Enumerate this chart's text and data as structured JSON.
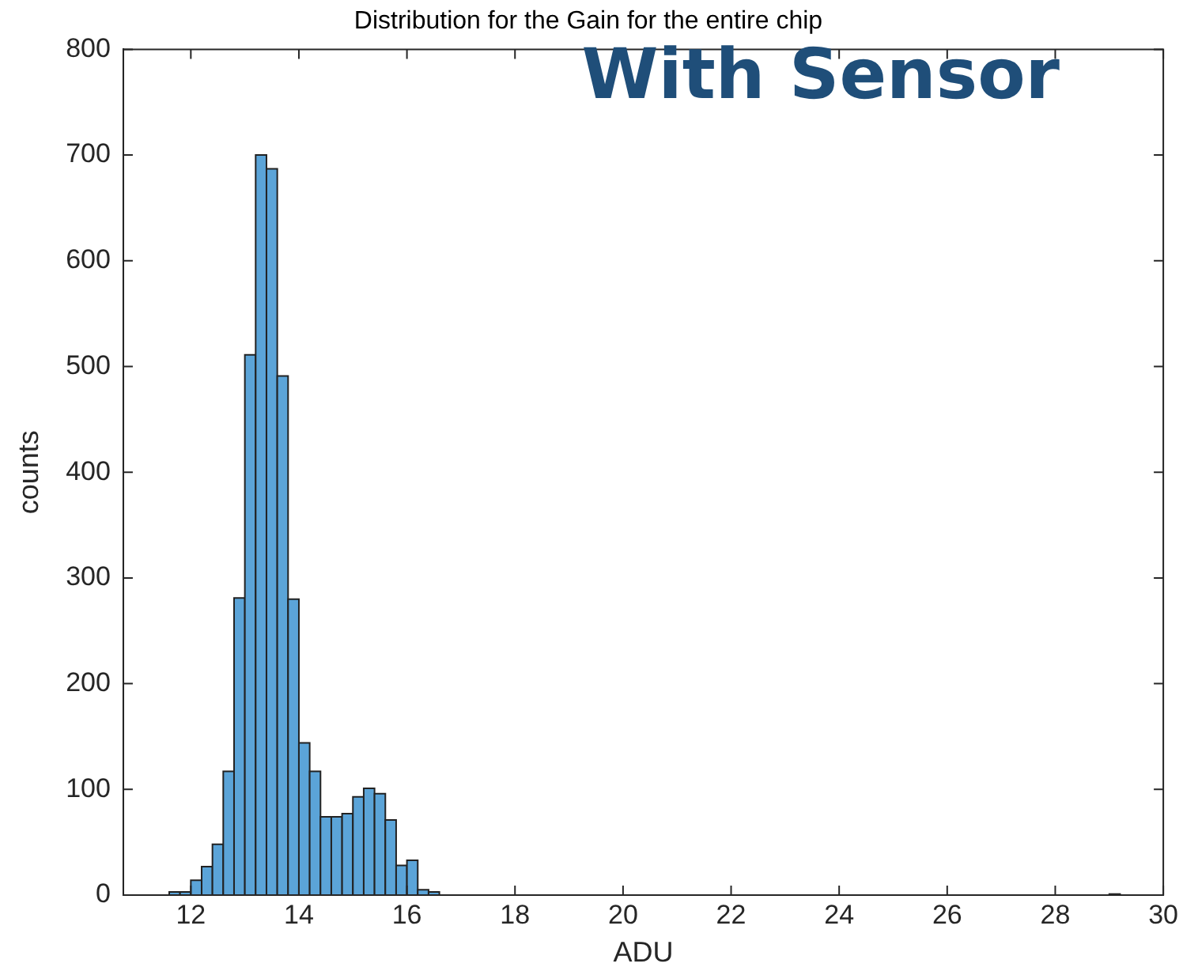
{
  "chart_data": {
    "type": "histogram",
    "title": "Distribution for the Gain for the entire chip",
    "xlabel": "ADU",
    "ylabel": "counts",
    "annotations": [
      "With Sensor"
    ],
    "bins": [
      11.6,
      11.8,
      12.0,
      12.2,
      12.4,
      12.6,
      12.8,
      13.0,
      13.2,
      13.4,
      13.6,
      13.8,
      14.0,
      14.2,
      14.4,
      14.6,
      14.8,
      15.0,
      15.2,
      15.4,
      15.6,
      15.8,
      16.0,
      16.2,
      16.4,
      16.6,
      29.0,
      29.2
    ],
    "values": [
      3,
      3,
      14,
      27,
      48,
      117,
      281,
      511,
      700,
      687,
      491,
      280,
      144,
      117,
      74,
      74,
      77,
      93,
      101,
      96,
      71,
      28,
      33,
      5,
      3,
      0,
      1
    ],
    "color": "#5ba4d8",
    "xlim": [
      10.75,
      30
    ],
    "xticks": [
      12,
      14,
      16,
      18,
      20,
      22,
      24,
      26,
      28,
      30
    ],
    "ylim": [
      0,
      800
    ],
    "yticks": [
      0,
      100,
      200,
      300,
      400,
      500,
      600,
      700,
      800
    ],
    "grid": false
  }
}
